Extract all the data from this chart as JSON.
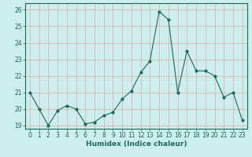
{
  "x": [
    0,
    1,
    2,
    3,
    4,
    5,
    6,
    7,
    8,
    9,
    10,
    11,
    12,
    13,
    14,
    15,
    16,
    17,
    18,
    19,
    20,
    21,
    22,
    23
  ],
  "y": [
    21.0,
    20.0,
    19.0,
    19.9,
    20.2,
    20.0,
    19.1,
    19.2,
    19.6,
    19.8,
    20.6,
    21.1,
    22.2,
    22.9,
    25.9,
    25.4,
    21.0,
    23.5,
    22.3,
    22.3,
    22.0,
    20.7,
    21.0,
    19.3
  ],
  "line_color": "#1a6b5a",
  "marker": "o",
  "markersize": 2,
  "linewidth": 0.8,
  "xlabel": "Humidex (Indice chaleur)",
  "ylim": [
    18.8,
    26.4
  ],
  "xlim": [
    -0.5,
    23.5
  ],
  "bg_color": "#cceeed",
  "grid_color": "#e8a8a8",
  "ytick_values": [
    19,
    20,
    21,
    22,
    23,
    24,
    25,
    26
  ],
  "ytick_labels": [
    "19",
    "20",
    "21",
    "22",
    "23",
    "24",
    "25",
    "26"
  ],
  "xtick_labels": [
    "0",
    "1",
    "2",
    "3",
    "4",
    "5",
    "6",
    "7",
    "8",
    "9",
    "10",
    "11",
    "12",
    "13",
    "14",
    "15",
    "16",
    "17",
    "18",
    "19",
    "20",
    "21",
    "22",
    "23"
  ],
  "tick_fontsize": 5.5,
  "xlabel_fontsize": 6.5
}
